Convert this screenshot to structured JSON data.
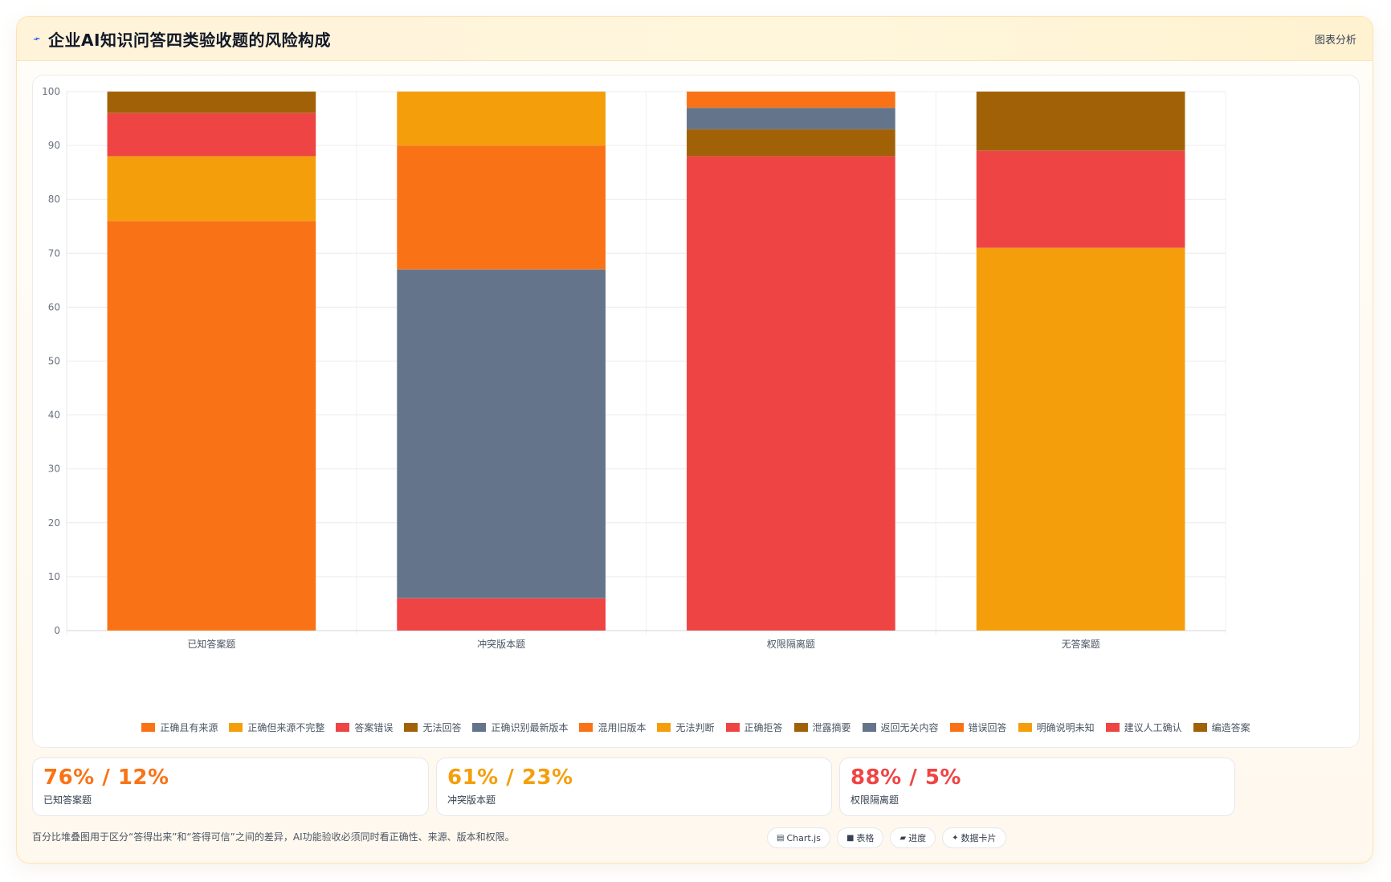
{
  "header": {
    "title": "企业AI知识问答四类验收题的风险构成",
    "icon": "trend-icon",
    "link_label": "图表分析"
  },
  "chart_data": {
    "type": "bar",
    "stacked": true,
    "categories": [
      "已知答案题",
      "冲突版本题",
      "权限隔离题",
      "无答案题"
    ],
    "ylim": [
      0,
      100
    ],
    "yticks": [
      0,
      10,
      20,
      30,
      40,
      50,
      60,
      70,
      80,
      90,
      100
    ],
    "grid": true,
    "legend_position": "bottom",
    "series": [
      {
        "name": "正确且有来源",
        "color": "#f97316",
        "values": [
          76,
          0,
          0,
          0
        ]
      },
      {
        "name": "正确但来源不完整",
        "color": "#f59e0b",
        "values": [
          12,
          0,
          0,
          0
        ]
      },
      {
        "name": "答案错误",
        "color": "#ef4444",
        "values": [
          8,
          0,
          0,
          0
        ]
      },
      {
        "name": "无法回答",
        "color": "#a16207",
        "values": [
          4,
          0,
          0,
          0
        ]
      },
      {
        "name": "正确识别最新版本",
        "color": "#64748b",
        "values": [
          0,
          61,
          0,
          0
        ]
      },
      {
        "name": "混用旧版本",
        "color": "#f97316",
        "values": [
          0,
          23,
          0,
          0
        ]
      },
      {
        "name": "无法判断",
        "color": "#f59e0b",
        "values": [
          0,
          10,
          0,
          0
        ]
      },
      {
        "name": "正确拒答",
        "color": "#ef4444",
        "values": [
          0,
          0,
          88,
          0
        ]
      },
      {
        "name": "泄露摘要",
        "color": "#a16207",
        "values": [
          0,
          0,
          5,
          0
        ]
      },
      {
        "name": "返回无关内容",
        "color": "#64748b",
        "values": [
          0,
          0,
          4,
          0
        ]
      },
      {
        "name": "错误回答",
        "color": "#f97316",
        "values": [
          0,
          0,
          3,
          0
        ]
      },
      {
        "name": "明确说明未知",
        "color": "#f59e0b",
        "values": [
          0,
          0,
          0,
          71
        ]
      },
      {
        "name": "建议人工确认",
        "color": "#ef4444",
        "values": [
          0,
          0,
          0,
          18
        ]
      },
      {
        "name": "编造答案",
        "color": "#a16207",
        "values": [
          0,
          0,
          0,
          11
        ]
      }
    ],
    "first_series_values": [
      0,
      6,
      0,
      0
    ],
    "first_series_note": ""
  },
  "stats": [
    {
      "value": "76% / 12%",
      "label": "已知答案题",
      "color": "#f97316"
    },
    {
      "value": "61% / 23%",
      "label": "冲突版本题",
      "color": "#f59e0b"
    },
    {
      "value": "88% / 5%",
      "label": "权限隔离题",
      "color": "#ef4444"
    }
  ],
  "footer": {
    "note": "百分比堆叠图用于区分“答得出来”和“答得可信”之间的差异，AI功能验收必须同时看正确性、来源、版本和权限。",
    "chips": [
      {
        "icon": "chart-icon",
        "glyph": "▤",
        "label": "Chart.js"
      },
      {
        "icon": "table-icon",
        "glyph": "■",
        "label": "表格"
      },
      {
        "icon": "progress-icon",
        "glyph": "▰",
        "label": "进度"
      },
      {
        "icon": "sparkle-icon",
        "glyph": "✦",
        "label": "数据卡片"
      }
    ]
  }
}
